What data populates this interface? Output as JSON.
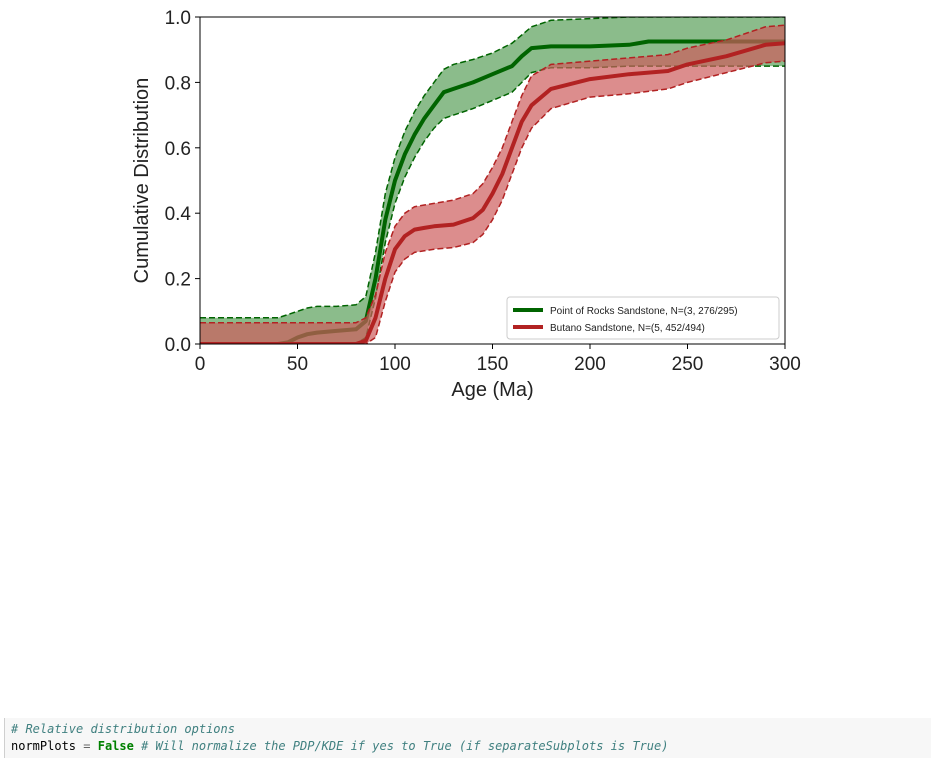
{
  "chart_data": {
    "type": "line",
    "xlabel": "Age (Ma)",
    "ylabel": "Cumulative Distribution",
    "xlim": [
      0,
      300
    ],
    "ylim": [
      0,
      1.0
    ],
    "xticks": [
      0,
      50,
      100,
      150,
      200,
      250,
      300
    ],
    "yticks": [
      0.0,
      0.2,
      0.4,
      0.6,
      0.8,
      1.0
    ],
    "ytick_labels": [
      "0.0",
      "0.2",
      "0.4",
      "0.6",
      "0.8",
      "1.0"
    ],
    "grid": false,
    "legend_position": "lower-right",
    "series": [
      {
        "name": "Point of Rocks Sandstone, N=(3, 276/295)",
        "color": "#006400",
        "fill": "#5aa05a",
        "x": [
          0,
          40,
          45,
          50,
          55,
          60,
          70,
          80,
          85,
          90,
          95,
          100,
          105,
          110,
          115,
          120,
          125,
          130,
          140,
          150,
          160,
          165,
          170,
          180,
          200,
          220,
          230,
          250,
          300
        ],
        "mean": [
          0,
          0,
          0.005,
          0.02,
          0.03,
          0.035,
          0.04,
          0.045,
          0.07,
          0.2,
          0.38,
          0.5,
          0.58,
          0.64,
          0.69,
          0.73,
          0.77,
          0.78,
          0.8,
          0.825,
          0.85,
          0.88,
          0.905,
          0.91,
          0.91,
          0.915,
          0.925,
          0.925,
          0.925
        ],
        "upper": [
          0.08,
          0.08,
          0.09,
          0.1,
          0.11,
          0.115,
          0.115,
          0.12,
          0.145,
          0.28,
          0.46,
          0.57,
          0.65,
          0.71,
          0.76,
          0.8,
          0.84,
          0.855,
          0.87,
          0.89,
          0.92,
          0.945,
          0.97,
          0.99,
          0.995,
          1.0,
          1.0,
          1.0,
          1.0
        ],
        "lower": [
          0,
          0,
          0,
          0,
          0,
          0,
          0,
          0,
          0.02,
          0.14,
          0.31,
          0.43,
          0.51,
          0.57,
          0.62,
          0.66,
          0.69,
          0.7,
          0.72,
          0.745,
          0.77,
          0.8,
          0.83,
          0.845,
          0.845,
          0.85,
          0.85,
          0.85,
          0.85
        ]
      },
      {
        "name": "Butano Sandstone, N=(5, 452/494)",
        "color": "#b22222",
        "fill": "#cd5c5c",
        "x": [
          0,
          80,
          85,
          90,
          95,
          100,
          105,
          110,
          115,
          120,
          130,
          140,
          145,
          150,
          155,
          160,
          165,
          170,
          180,
          200,
          220,
          240,
          250,
          270,
          290,
          300
        ],
        "mean": [
          0,
          0,
          0.01,
          0.08,
          0.2,
          0.29,
          0.33,
          0.35,
          0.355,
          0.36,
          0.365,
          0.385,
          0.41,
          0.46,
          0.52,
          0.6,
          0.68,
          0.73,
          0.78,
          0.81,
          0.825,
          0.835,
          0.855,
          0.88,
          0.915,
          0.92
        ],
        "upper": [
          0.065,
          0.065,
          0.08,
          0.15,
          0.28,
          0.36,
          0.4,
          0.42,
          0.425,
          0.43,
          0.44,
          0.46,
          0.49,
          0.54,
          0.6,
          0.68,
          0.76,
          0.82,
          0.855,
          0.865,
          0.875,
          0.885,
          0.905,
          0.93,
          0.97,
          0.975
        ],
        "lower": [
          0,
          0,
          0,
          0.02,
          0.13,
          0.22,
          0.26,
          0.28,
          0.285,
          0.29,
          0.295,
          0.31,
          0.335,
          0.38,
          0.44,
          0.52,
          0.6,
          0.66,
          0.72,
          0.755,
          0.765,
          0.78,
          0.8,
          0.83,
          0.86,
          0.865
        ]
      }
    ]
  },
  "code_cell": {
    "line1_comment": "# Relative distribution options",
    "line2_var": "normPlots",
    "line2_eq": " = ",
    "line2_value": "False",
    "line2_comment": " # Will normalize the PDP/KDE if yes to True (if separateSubplots is True)"
  }
}
